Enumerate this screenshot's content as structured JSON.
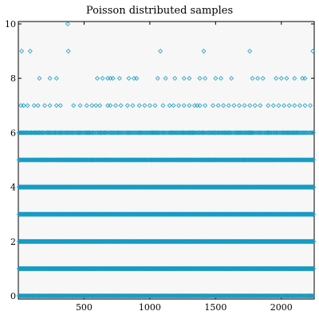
{
  "chart_data": {
    "type": "scatter",
    "title": "Poisson distributed samples",
    "xlabel": "",
    "ylabel": "",
    "xlim": [
      0,
      2250
    ],
    "ylim": [
      0,
      10
    ],
    "x_ticks": [
      500,
      1000,
      1500,
      2000
    ],
    "y_ticks": [
      0,
      2,
      4,
      6,
      8,
      10
    ],
    "grid": false,
    "marker": "diamond",
    "marker_color": "#1a9cc4",
    "series": [
      {
        "n_samples": 2250,
        "levels": [
          {
            "y": 10,
            "x": [
              375
            ]
          },
          {
            "y": 9,
            "x": [
              25,
              90,
              380,
              1080,
              1410,
              1760,
              2240
            ]
          },
          {
            "y": 8,
            "x": [
              160,
              240,
              290,
              600,
              640,
              680,
              700,
              720,
              770,
              840,
              880,
              900,
              1060,
              1120,
              1190,
              1260,
              1300,
              1380,
              1420,
              1500,
              1540,
              1620,
              1780,
              1820,
              1860,
              1960,
              2000,
              2040,
              2100,
              2160,
              2180
            ]
          },
          {
            "y": 7,
            "x": [
              20,
              40,
              70,
              120,
              150,
              200,
              240,
              290,
              320,
              420,
              470,
              520,
              560,
              590,
              620,
              680,
              700,
              740,
              780,
              830,
              870,
              920,
              960,
              1000,
              1040,
              1100,
              1150,
              1180,
              1220,
              1260,
              1300,
              1340,
              1360,
              1380,
              1420,
              1480,
              1520,
              1560,
              1600,
              1640,
              1680,
              1720,
              1760,
              1800,
              1840,
              1900,
              1940,
              1980,
              2020,
              2060,
              2100,
              2140,
              2180,
              2220
            ]
          }
        ],
        "dense_levels": [
          0,
          1,
          2,
          3,
          4,
          5,
          6
        ]
      }
    ]
  }
}
